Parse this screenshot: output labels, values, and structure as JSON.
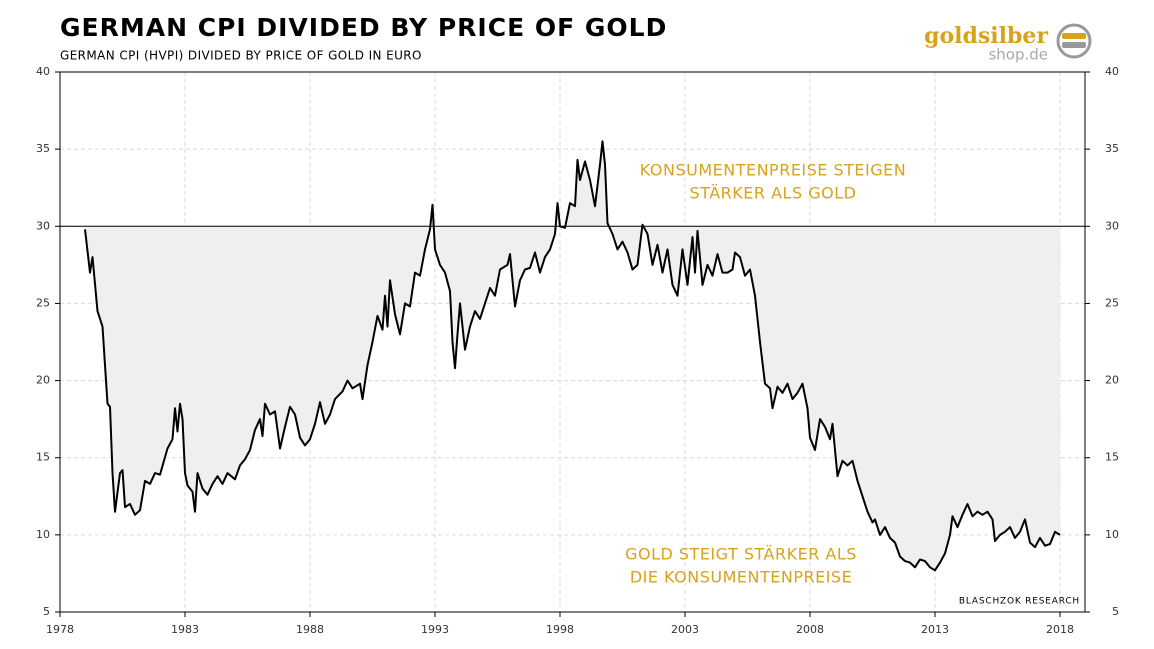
{
  "chart_data": {
    "type": "line",
    "title": "GERMAN CPI DIVIDED BY PRICE OF GOLD",
    "subtitle": "GERMAN CPI (HVPI) DIVIDED BY PRICE OF GOLD IN EURO",
    "logo": [
      "goldsilber",
      "shop.de"
    ],
    "source": "BLASCHZOK RESEARCH",
    "annotations": [
      {
        "lines": [
          "KONSUMENTENPREISE STEIGEN",
          "STÄRKER ALS GOLD"
        ]
      },
      {
        "lines": [
          "GOLD STEIGT STÄRKER ALS",
          "DIE KONSUMENTENPREISE"
        ]
      }
    ],
    "color": "#000000",
    "fill_color": "#efefef",
    "reference_line": 30,
    "grid": true,
    "xlim": [
      1978,
      2019
    ],
    "xticks": [
      1978,
      1983,
      1988,
      1993,
      1998,
      2003,
      2008,
      2013,
      2018
    ],
    "ylim": [
      5,
      40
    ],
    "yticks": [
      5,
      10,
      15,
      20,
      25,
      30,
      35,
      40
    ],
    "y2lim": [
      5,
      40
    ],
    "y2ticks": [
      5,
      10,
      15,
      20,
      25,
      30,
      35,
      40
    ],
    "x": [
      1979.0,
      1979.2,
      1979.3,
      1979.5,
      1979.7,
      1979.9,
      1980.0,
      1980.1,
      1980.2,
      1980.4,
      1980.5,
      1980.6,
      1980.8,
      1981.0,
      1981.2,
      1981.4,
      1981.6,
      1981.8,
      1982.0,
      1982.3,
      1982.5,
      1982.6,
      1982.7,
      1982.8,
      1982.9,
      1983.0,
      1983.1,
      1983.3,
      1983.4,
      1983.5,
      1983.7,
      1983.9,
      1984.1,
      1984.3,
      1984.5,
      1984.7,
      1985.0,
      1985.2,
      1985.4,
      1985.6,
      1985.8,
      1986.0,
      1986.1,
      1986.2,
      1986.4,
      1986.6,
      1986.8,
      1987.0,
      1987.2,
      1987.4,
      1987.6,
      1987.8,
      1988.0,
      1988.2,
      1988.4,
      1988.6,
      1988.8,
      1989.0,
      1989.3,
      1989.5,
      1989.7,
      1990.0,
      1990.1,
      1990.3,
      1990.5,
      1990.7,
      1990.9,
      1991.0,
      1991.1,
      1991.2,
      1991.4,
      1991.6,
      1991.8,
      1992.0,
      1992.2,
      1992.4,
      1992.6,
      1992.8,
      1992.9,
      1993.0,
      1993.2,
      1993.4,
      1993.6,
      1993.7,
      1993.8,
      1993.9,
      1994.0,
      1994.2,
      1994.4,
      1994.6,
      1994.8,
      1995.0,
      1995.2,
      1995.4,
      1995.6,
      1995.9,
      1996.0,
      1996.2,
      1996.4,
      1996.6,
      1996.8,
      1997.0,
      1997.2,
      1997.4,
      1997.6,
      1997.8,
      1997.9,
      1998.0,
      1998.2,
      1998.4,
      1998.6,
      1998.7,
      1998.8,
      1999.0,
      1999.2,
      1999.4,
      1999.6,
      1999.7,
      1999.8,
      1999.9,
      2000.1,
      2000.3,
      2000.5,
      2000.7,
      2000.9,
      2001.1,
      2001.3,
      2001.5,
      2001.7,
      2001.9,
      2002.1,
      2002.3,
      2002.5,
      2002.7,
      2002.9,
      2003.1,
      2003.3,
      2003.4,
      2003.5,
      2003.7,
      2003.9,
      2004.1,
      2004.3,
      2004.5,
      2004.7,
      2004.9,
      2005.0,
      2005.2,
      2005.4,
      2005.6,
      2005.8,
      2006.0,
      2006.2,
      2006.4,
      2006.5,
      2006.7,
      2006.9,
      2007.1,
      2007.3,
      2007.5,
      2007.7,
      2007.9,
      2008.0,
      2008.2,
      2008.4,
      2008.6,
      2008.8,
      2008.9,
      2009.1,
      2009.3,
      2009.5,
      2009.7,
      2009.9,
      2010.1,
      2010.3,
      2010.5,
      2010.6,
      2010.8,
      2011.0,
      2011.2,
      2011.4,
      2011.6,
      2011.8,
      2012.0,
      2012.2,
      2012.4,
      2012.6,
      2012.8,
      2013.0,
      2013.2,
      2013.4,
      2013.6,
      2013.7,
      2013.9,
      2014.1,
      2014.3,
      2014.5,
      2014.7,
      2014.9,
      2015.1,
      2015.3,
      2015.4,
      2015.6,
      2015.8,
      2016.0,
      2016.2,
      2016.4,
      2016.6,
      2016.8,
      2017.0,
      2017.2,
      2017.4,
      2017.6,
      2017.8,
      2018.0
    ],
    "values": [
      29.8,
      27,
      28,
      24.5,
      23.5,
      18.5,
      18.3,
      14,
      11.5,
      14,
      14.2,
      11.8,
      12,
      11.3,
      11.6,
      13.5,
      13.3,
      14,
      13.9,
      15.6,
      16.2,
      18.2,
      16.7,
      18.5,
      17.5,
      14,
      13.2,
      12.8,
      11.5,
      14,
      13,
      12.6,
      13.3,
      13.8,
      13.3,
      14,
      13.6,
      14.5,
      14.9,
      15.5,
      16.8,
      17.5,
      16.4,
      18.5,
      17.8,
      18,
      15.6,
      17,
      18.3,
      17.8,
      16.3,
      15.8,
      16.2,
      17.2,
      18.6,
      17.2,
      17.8,
      18.8,
      19.3,
      20,
      19.5,
      19.8,
      18.8,
      21,
      22.5,
      24.2,
      23.3,
      25.5,
      23.5,
      26.5,
      24.3,
      23,
      25,
      24.8,
      27,
      26.8,
      28.5,
      29.8,
      31.4,
      28.5,
      27.5,
      27,
      25.8,
      22.5,
      20.8,
      23,
      25,
      22,
      23.5,
      24.5,
      24,
      25,
      26,
      25.5,
      27.2,
      27.5,
      28.2,
      24.8,
      26.5,
      27.2,
      27.3,
      28.3,
      27,
      28,
      28.5,
      29.5,
      31.5,
      30,
      29.9,
      31.5,
      31.3,
      34.3,
      33,
      34.2,
      33,
      31.3,
      34,
      35.5,
      34,
      30.2,
      29.5,
      28.5,
      29,
      28.3,
      27.2,
      27.5,
      30.1,
      29.5,
      27.5,
      28.8,
      27,
      28.5,
      26.2,
      25.5,
      28.5,
      26.2,
      29.3,
      27,
      29.7,
      26.2,
      27.5,
      26.8,
      28.2,
      27,
      27,
      27.2,
      28.3,
      28,
      26.8,
      27.2,
      25.5,
      22.5,
      19.8,
      19.5,
      18.2,
      19.6,
      19.2,
      19.8,
      18.8,
      19.2,
      19.8,
      18.2,
      16.3,
      15.5,
      17.5,
      17,
      16.2,
      17.2,
      13.8,
      14.8,
      14.5,
      14.8,
      13.5,
      12.5,
      11.5,
      10.8,
      11,
      10,
      10.5,
      9.8,
      9.5,
      8.6,
      8.3,
      8.2,
      7.9,
      8.4,
      8.3,
      7.9,
      7.7,
      8.2,
      8.8,
      10,
      11.2,
      10.5,
      11.3,
      12,
      11.2,
      11.5,
      11.3,
      11.5,
      11,
      9.6,
      10,
      10.2,
      10.5,
      9.8,
      10.2,
      11,
      9.5,
      9.2,
      9.8,
      9.3,
      9.4,
      10.2,
      10.0
    ]
  }
}
